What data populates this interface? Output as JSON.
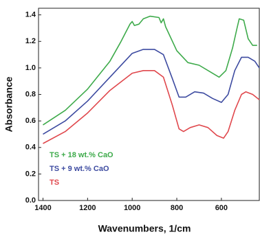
{
  "chart_data": {
    "type": "line",
    "x_label": "Wavenumbers, 1/cm",
    "y_label": "Absorbance",
    "xlim": [
      1420,
      430
    ],
    "ylim": [
      0,
      1.45
    ],
    "xticks": [
      1400,
      1200,
      1000,
      800,
      600
    ],
    "yticks": [
      {
        "value": 0,
        "label": "0.0"
      },
      0.2,
      0.4,
      0.6,
      0.8,
      {
        "value": 1,
        "label": "1.0"
      },
      1.2,
      1.4
    ],
    "legend": "lower left",
    "series": [
      {
        "name": "TS + 18 wt.% CaO",
        "color": "#3daa4a",
        "x": [
          1400,
          1300,
          1200,
          1100,
          1050,
          1010,
          1000,
          990,
          970,
          950,
          920,
          880,
          870,
          860,
          850,
          800,
          750,
          700,
          650,
          610,
          580,
          550,
          530,
          520,
          500,
          480,
          460,
          440
        ],
        "values": [
          0.57,
          0.68,
          0.84,
          1.05,
          1.2,
          1.33,
          1.35,
          1.32,
          1.33,
          1.37,
          1.39,
          1.38,
          1.34,
          1.37,
          1.31,
          1.13,
          1.04,
          1.02,
          0.97,
          0.93,
          0.98,
          1.15,
          1.3,
          1.37,
          1.36,
          1.22,
          1.17,
          1.17
        ]
      },
      {
        "name": "TS + 9 wt.% CaO",
        "color": "#3c4aa0",
        "x": [
          1400,
          1300,
          1200,
          1100,
          1000,
          950,
          900,
          860,
          820,
          790,
          760,
          720,
          680,
          640,
          600,
          570,
          540,
          510,
          480,
          450,
          430
        ],
        "values": [
          0.5,
          0.6,
          0.75,
          0.93,
          1.11,
          1.14,
          1.14,
          1.1,
          0.92,
          0.78,
          0.78,
          0.82,
          0.81,
          0.77,
          0.74,
          0.8,
          0.98,
          1.08,
          1.08,
          1.05,
          1.0
        ]
      },
      {
        "name": "TS",
        "color": "#e0474c",
        "x": [
          1400,
          1300,
          1200,
          1100,
          1000,
          950,
          900,
          860,
          820,
          790,
          770,
          740,
          700,
          660,
          620,
          590,
          570,
          540,
          510,
          490,
          460,
          430
        ],
        "values": [
          0.43,
          0.52,
          0.66,
          0.83,
          0.96,
          0.98,
          0.98,
          0.93,
          0.72,
          0.54,
          0.52,
          0.55,
          0.57,
          0.55,
          0.49,
          0.47,
          0.52,
          0.68,
          0.8,
          0.82,
          0.8,
          0.76
        ]
      }
    ]
  }
}
